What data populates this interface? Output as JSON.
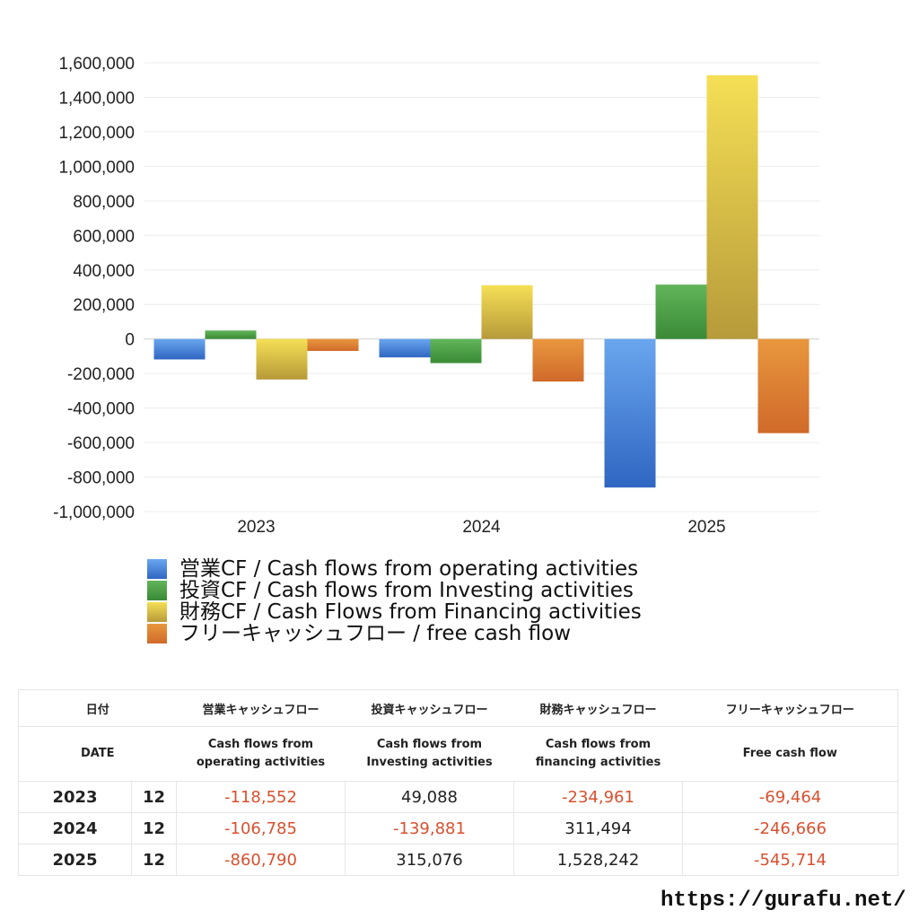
{
  "chart_data": {
    "type": "bar",
    "categories": [
      "2023",
      "2024",
      "2025"
    ],
    "series": [
      {
        "name": "営業CF / Cash flows from operating activities",
        "values": [
          -118552,
          -106785,
          -860790
        ],
        "color_top": "#6aa6ee",
        "color_bottom": "#2f66c2"
      },
      {
        "name": "投資CF / Cash flows from Investing activities",
        "values": [
          49088,
          -139881,
          315076
        ],
        "color_top": "#62b55a",
        "color_bottom": "#3a8a36"
      },
      {
        "name": "財務CF / Cash Flows from Financing activities",
        "values": [
          -234961,
          311494,
          1528242
        ],
        "color_top": "#f5df55",
        "color_bottom": "#b79a3a"
      },
      {
        "name": "フリーキャッシュフロー / free cash flow",
        "values": [
          -69464,
          -246666,
          -545714
        ],
        "color_top": "#e8973e",
        "color_bottom": "#d06a2a"
      }
    ],
    "ylim": [
      -1000000,
      1600000
    ],
    "yticks": [
      "1,600,000",
      "1,400,000",
      "1,200,000",
      "1,000,000",
      "800,000",
      "600,000",
      "400,000",
      "200,000",
      "0",
      "-200,000",
      "-400,000",
      "-600,000",
      "-800,000",
      "-1,000,000"
    ],
    "grid": true,
    "legend_position": "bottom-left"
  },
  "table": {
    "headers_jp": [
      "日付",
      "",
      "営業キャッシュフロー",
      "投資キャッシュフロー",
      "財務キャッシュフロー",
      "フリーキャッシュフロー"
    ],
    "headers_en": [
      "DATE",
      "",
      "Cash flows from\noperating activities",
      "Cash flows from\nInvesting activities",
      "Cash flows from\nfinancing activities",
      "Free cash flow"
    ],
    "rows": [
      {
        "year": "2023",
        "month": "12",
        "op": "-118,552",
        "inv": "49,088",
        "fin": "-234,961",
        "free": "-69,464"
      },
      {
        "year": "2024",
        "month": "12",
        "op": "-106,785",
        "inv": "-139,881",
        "fin": "311,494",
        "free": "-246,666"
      },
      {
        "year": "2025",
        "month": "12",
        "op": "-860,790",
        "inv": "315,076",
        "fin": "1,528,242",
        "free": "-545,714"
      }
    ]
  },
  "footer": {
    "url": "https://gurafu.net/"
  }
}
